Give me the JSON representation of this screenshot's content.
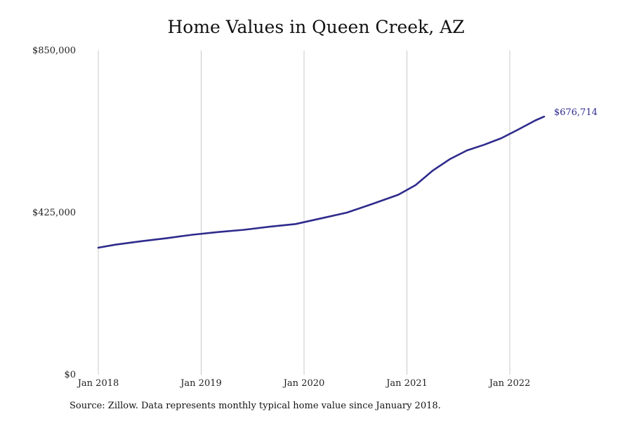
{
  "chart_data": {
    "type": "line",
    "title": "Home Values in Queen Creek, AZ",
    "xlabel": "",
    "ylabel": "",
    "x_start": "2018-01",
    "x_end": "2022-05",
    "ylim": [
      0,
      850000
    ],
    "y_ticks": [
      "$0",
      "$425,000",
      "$850,000"
    ],
    "y_tick_values": [
      0,
      425000,
      850000
    ],
    "x_ticks": [
      "Jan 2018",
      "Jan 2019",
      "Jan 2020",
      "Jan 2021",
      "Jan 2022"
    ],
    "x_tick_values": [
      "2018-01",
      "2019-01",
      "2020-01",
      "2021-01",
      "2022-01"
    ],
    "grid": "vertical lines at x ticks",
    "line_color": "#2e2b8c",
    "series": [
      {
        "x": [
          "2018-01",
          "2018-03",
          "2018-06",
          "2018-09",
          "2018-12",
          "2019-03",
          "2019-06",
          "2019-09",
          "2019-12",
          "2020-03",
          "2020-06",
          "2020-09",
          "2020-12",
          "2021-02",
          "2021-04",
          "2021-06",
          "2021-08",
          "2021-10",
          "2021-12",
          "2022-02",
          "2022-04",
          "2022-05"
        ],
        "values": [
          333000,
          341000,
          350000,
          358000,
          367000,
          374000,
          380000,
          388000,
          395000,
          410000,
          425000,
          448000,
          472000,
          497000,
          535000,
          565000,
          588000,
          603000,
          620000,
          643000,
          667000,
          676714
        ]
      }
    ],
    "end_label": "$676,714"
  },
  "source_note": "Source: Zillow. Data represents monthly typical home value since January 2018."
}
